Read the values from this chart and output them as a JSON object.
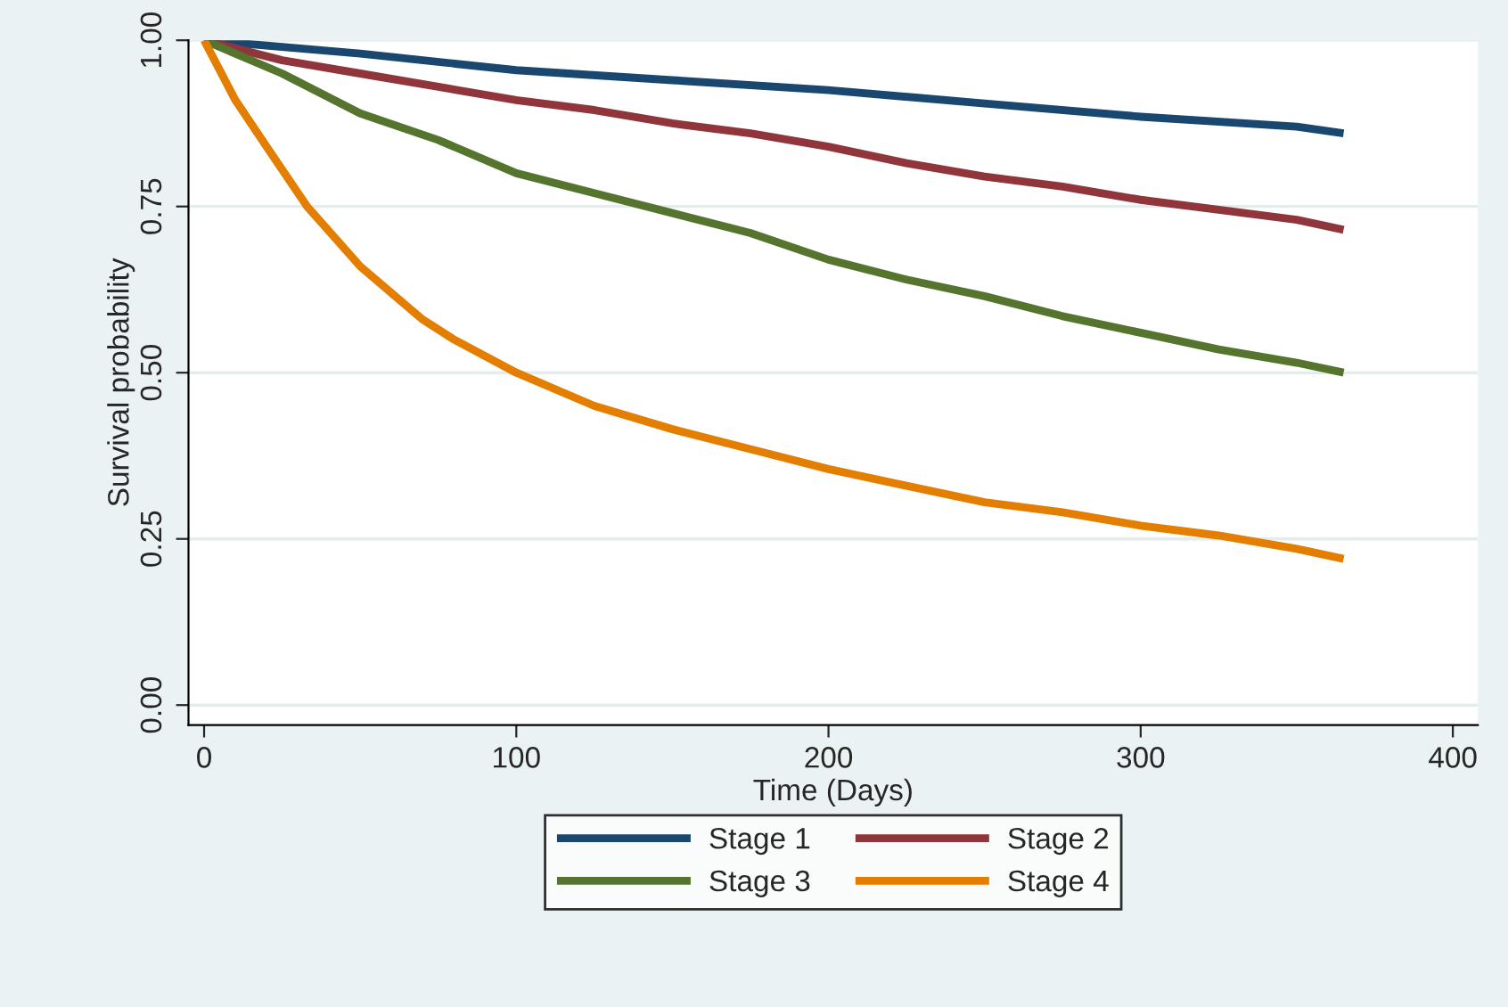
{
  "chart_data": {
    "type": "line",
    "xlabel": "Time (Days)",
    "ylabel": "Survival probability",
    "xlim": [
      -5,
      408
    ],
    "ylim": [
      -0.03,
      1.0
    ],
    "xticks": [
      0,
      100,
      200,
      300,
      400
    ],
    "yticks": [
      {
        "value": 0,
        "label": "0.00"
      },
      {
        "value": 0.25,
        "label": "0.25"
      },
      {
        "value": 0.5,
        "label": "0.50"
      },
      {
        "value": 0.75,
        "label": "0.75"
      },
      {
        "value": 1,
        "label": "1.00"
      }
    ],
    "grid": "y",
    "legend": "bottom",
    "line_style": "solid",
    "marker": "none",
    "series": [
      {
        "name": "Stage 1",
        "color": "#1a476f",
        "x": [
          0,
          50,
          100,
          150,
          200,
          250,
          300,
          350,
          365
        ],
        "values": [
          1.0,
          0.98,
          0.955,
          0.94,
          0.925,
          0.905,
          0.885,
          0.87,
          0.86
        ]
      },
      {
        "name": "Stage 2",
        "color": "#90353b",
        "x": [
          0,
          25,
          50,
          75,
          100,
          125,
          150,
          175,
          200,
          225,
          250,
          275,
          300,
          325,
          350,
          365
        ],
        "values": [
          1.0,
          0.97,
          0.95,
          0.93,
          0.91,
          0.895,
          0.875,
          0.86,
          0.84,
          0.815,
          0.795,
          0.78,
          0.76,
          0.745,
          0.73,
          0.715
        ]
      },
      {
        "name": "Stage 3",
        "color": "#55752f",
        "x": [
          0,
          25,
          50,
          75,
          100,
          125,
          150,
          175,
          200,
          225,
          250,
          275,
          300,
          325,
          350,
          365
        ],
        "values": [
          1.0,
          0.95,
          0.89,
          0.85,
          0.8,
          0.77,
          0.74,
          0.71,
          0.67,
          0.64,
          0.615,
          0.585,
          0.56,
          0.535,
          0.515,
          0.5
        ]
      },
      {
        "name": "Stage 4",
        "color": "#e37e00",
        "x": [
          0,
          10,
          20,
          33,
          50,
          70,
          80,
          100,
          125,
          150,
          175,
          200,
          225,
          250,
          275,
          300,
          325,
          350,
          365
        ],
        "values": [
          1.0,
          0.91,
          0.84,
          0.75,
          0.66,
          0.58,
          0.55,
          0.5,
          0.45,
          0.415,
          0.385,
          0.355,
          0.33,
          0.305,
          0.29,
          0.27,
          0.255,
          0.235,
          0.22
        ]
      }
    ]
  }
}
